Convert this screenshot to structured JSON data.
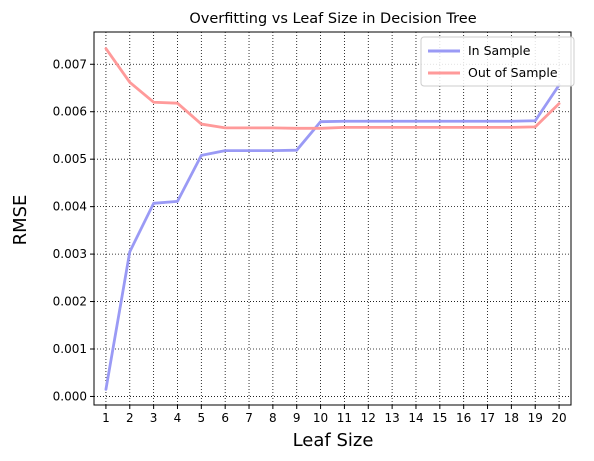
{
  "chart_data": {
    "type": "line",
    "title": "Overfitting vs Leaf Size in Decision Tree",
    "xlabel": "Leaf Size",
    "ylabel": "RMSE",
    "x": [
      1,
      2,
      3,
      4,
      5,
      6,
      7,
      8,
      9,
      10,
      11,
      12,
      13,
      14,
      15,
      16,
      17,
      18,
      19,
      20
    ],
    "xlim": [
      0.5,
      20.5
    ],
    "ylim": [
      -0.00018,
      0.00768
    ],
    "yticks": [
      0.0,
      0.001,
      0.002,
      0.003,
      0.004,
      0.005,
      0.006,
      0.007
    ],
    "ytick_labels": [
      "0.000",
      "0.001",
      "0.002",
      "0.003",
      "0.004",
      "0.005",
      "0.006",
      "0.007"
    ],
    "grid": true,
    "legend_position": "top-right",
    "series": [
      {
        "name": "In Sample",
        "color": "#9a9af5",
        "values": [
          0.00015,
          0.00305,
          0.00407,
          0.00411,
          0.00508,
          0.00518,
          0.00518,
          0.00518,
          0.00519,
          0.00579,
          0.0058,
          0.0058,
          0.0058,
          0.0058,
          0.0058,
          0.0058,
          0.0058,
          0.0058,
          0.00581,
          0.00656
        ]
      },
      {
        "name": "Out of Sample",
        "color": "#ff9a9a",
        "values": [
          0.00733,
          0.00662,
          0.0062,
          0.00618,
          0.00574,
          0.00566,
          0.00566,
          0.00566,
          0.00565,
          0.00565,
          0.00567,
          0.00567,
          0.00567,
          0.00567,
          0.00567,
          0.00567,
          0.00567,
          0.00567,
          0.00568,
          0.00617
        ]
      }
    ]
  }
}
